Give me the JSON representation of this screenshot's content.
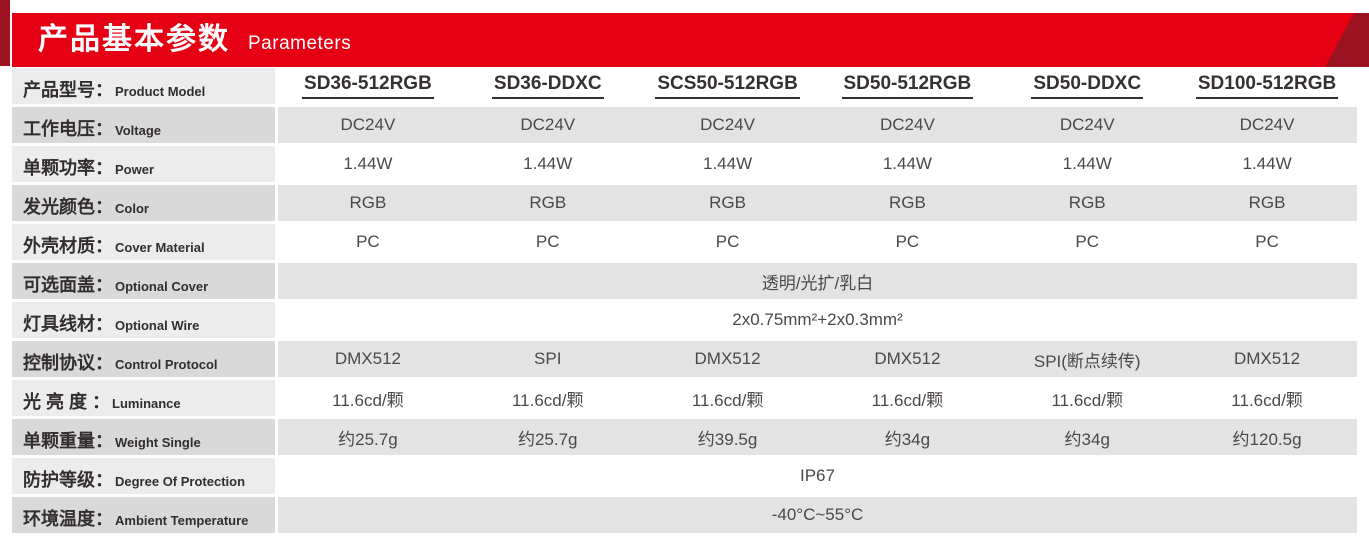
{
  "banner": {
    "title_zh": "产品基本参数",
    "title_en": "Parameters"
  },
  "colors": {
    "banner_red": "#e60014",
    "accent_dark_red": "#9c1220",
    "label_bg_light": "#ececec",
    "label_bg_dark": "#d9d9d9",
    "value_bg_gray": "#e3e3e3",
    "text_dark": "#322e2d",
    "text_value": "#4c4846"
  },
  "table": {
    "rows": [
      {
        "label_zh": "产品型号：",
        "label_en": "Product Model",
        "type": "models",
        "values": [
          "SD36-512RGB",
          "SD36-DDXC",
          "SCS50-512RGB",
          "SD50-512RGB",
          "SD50-DDXC",
          "SD100-512RGB"
        ]
      },
      {
        "label_zh": "工作电压：",
        "label_en": "Voltage",
        "values": [
          "DC24V",
          "DC24V",
          "DC24V",
          "DC24V",
          "DC24V",
          "DC24V"
        ]
      },
      {
        "label_zh": "单颗功率：",
        "label_en": "Power",
        "values": [
          "1.44W",
          "1.44W",
          "1.44W",
          "1.44W",
          "1.44W",
          "1.44W"
        ]
      },
      {
        "label_zh": "发光颜色：",
        "label_en": "Color",
        "values": [
          "RGB",
          "RGB",
          "RGB",
          "RGB",
          "RGB",
          "RGB"
        ]
      },
      {
        "label_zh": "外壳材质：",
        "label_en": "Cover Material",
        "values": [
          "PC",
          "PC",
          "PC",
          "PC",
          "PC",
          "PC"
        ]
      },
      {
        "label_zh": "可选面盖：",
        "label_en": "Optional Cover",
        "span": "透明/光扩/乳白"
      },
      {
        "label_zh": "灯具线材：",
        "label_en": "Optional Wire",
        "span": "2x0.75mm²+2x0.3mm²"
      },
      {
        "label_zh": "控制协议：",
        "label_en": "Control Protocol",
        "values": [
          "DMX512",
          "SPI",
          "DMX512",
          "DMX512",
          "SPI(断点续传)",
          "DMX512"
        ]
      },
      {
        "label_zh": "光 亮 度 ：",
        "label_en": "Luminance",
        "values": [
          "11.6cd/颗",
          "11.6cd/颗",
          "11.6cd/颗",
          "11.6cd/颗",
          "11.6cd/颗",
          "11.6cd/颗"
        ]
      },
      {
        "label_zh": "单颗重量：",
        "label_en": "Weight Single",
        "values": [
          "约25.7g",
          "约25.7g",
          "约39.5g",
          "约34g",
          "约34g",
          "约120.5g"
        ]
      },
      {
        "label_zh": "防护等级：",
        "label_en": "Degree Of Protection",
        "span": "IP67"
      },
      {
        "label_zh": "环境温度：",
        "label_en": "Ambient Temperature",
        "span": "-40°C~55°C"
      }
    ]
  }
}
